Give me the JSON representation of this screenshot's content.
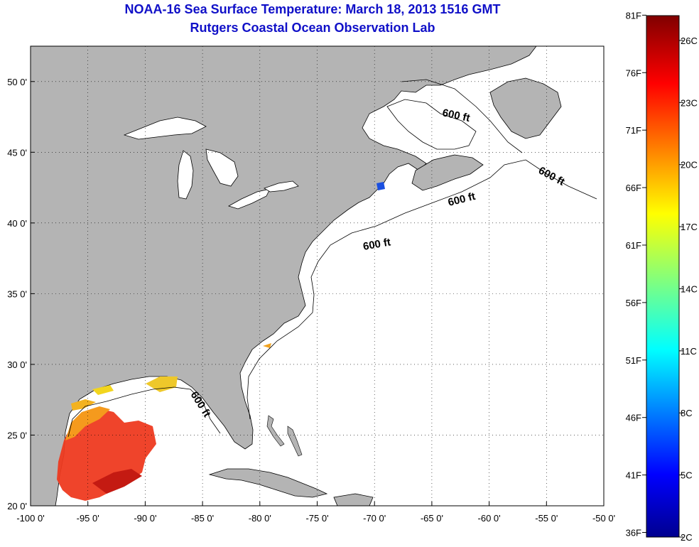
{
  "header": {
    "title": "NOAA-16 Sea Surface Temperature:  March 18, 2013 1516 GMT",
    "subtitle": "Rutgers Coastal Ocean Observation Lab"
  },
  "map": {
    "lon_range": [
      -100,
      -50
    ],
    "lat_range": [
      20,
      52.5
    ],
    "lon_ticks": [
      "-100 0'",
      "-95 0'",
      "-90 0'",
      "-85 0'",
      "-80 0'",
      "-75 0'",
      "-70 0'",
      "-65 0'",
      "-60 0'",
      "-55 0'",
      "-50 0'"
    ],
    "lat_ticks": [
      "20 0'",
      "25 0'",
      "30 0'",
      "35 0'",
      "40 0'",
      "45 0'",
      "50 0'"
    ],
    "grid": true,
    "land_color": "#b4b4b4",
    "isobath_labels": [
      "600 ft",
      "600 ft",
      "600 ft",
      "600 ft",
      "600 ft"
    ]
  },
  "colorbar": {
    "fahrenheit_labels": [
      "81F",
      "76F",
      "71F",
      "66F",
      "61F",
      "56F",
      "51F",
      "46F",
      "41F",
      "36F"
    ],
    "celsius_labels": [
      "26C",
      "23C",
      "20C",
      "17C",
      "14C",
      "11C",
      "8C",
      "5C",
      "2C"
    ],
    "colormap": "jet",
    "range_c": [
      2,
      27.2
    ]
  }
}
